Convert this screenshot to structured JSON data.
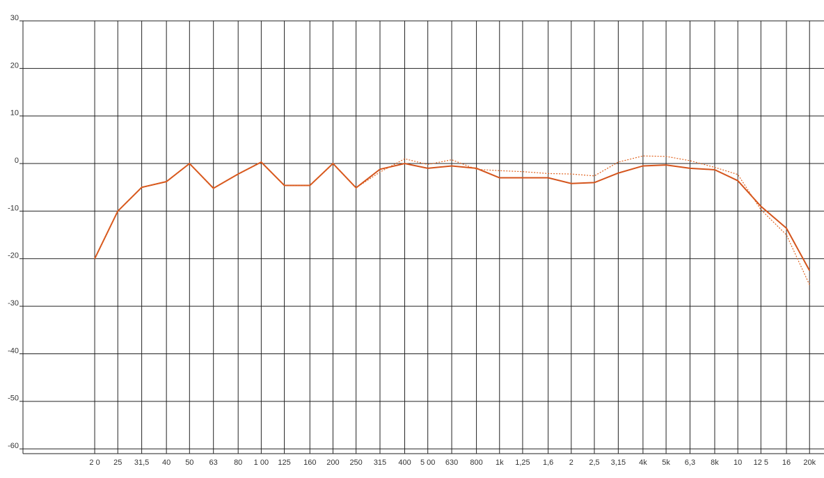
{
  "chart_data": {
    "type": "line",
    "log_x": true,
    "grid": true,
    "x": [
      20,
      25,
      31.5,
      40,
      50,
      63,
      80,
      100,
      125,
      160,
      200,
      250,
      315,
      400,
      500,
      630,
      800,
      1000,
      1250,
      1600,
      2000,
      2500,
      3150,
      4000,
      5000,
      6300,
      8000,
      10000,
      12500,
      16000,
      20000
    ],
    "series": [
      {
        "color": "#d4541c",
        "style": "solid",
        "values": [
          -20,
          -10,
          -5,
          -3.8,
          0,
          -5.2,
          -2.2,
          0.3,
          -4.6,
          -4.6,
          0,
          -5.1,
          -1.2,
          0,
          -1,
          -0.5,
          -1,
          -3,
          -3,
          -3,
          -4.2,
          -4,
          -2,
          -0.5,
          -0.3,
          -1,
          -1.3,
          -3.6,
          -9,
          -13.6,
          -22.5
        ]
      },
      {
        "color": "#e0621e",
        "style": "dotted",
        "values": [
          -20,
          -10,
          -5,
          -3.8,
          0,
          -5.2,
          -2.2,
          0.3,
          -4.6,
          -4.6,
          0,
          -5.1,
          -1.8,
          1,
          -0.2,
          0.8,
          -1.2,
          -1.5,
          -1.7,
          -2.1,
          -2.2,
          -2.6,
          0.3,
          1.6,
          1.5,
          0.6,
          -0.8,
          -2.3,
          -9.7,
          -15,
          -25.5
        ]
      }
    ],
    "xlim": [
      10,
      23000
    ],
    "xticks": [
      {
        "value": 20,
        "label": "2 0"
      },
      25,
      {
        "value": 31.5,
        "label": "31,5"
      },
      40,
      50,
      63,
      80,
      {
        "value": 100,
        "label": "1 00"
      },
      125,
      160,
      200,
      250,
      315,
      400,
      {
        "value": 500,
        "label": "5 00"
      },
      630,
      800,
      {
        "value": 1000,
        "label": "1k"
      },
      {
        "value": 1250,
        "label": "1,25"
      },
      {
        "value": 1600,
        "label": "1,6"
      },
      {
        "value": 2000,
        "label": "2"
      },
      {
        "value": 2500,
        "label": "2,5"
      },
      {
        "value": 3150,
        "label": "3,15"
      },
      {
        "value": 4000,
        "label": "4k"
      },
      {
        "value": 5000,
        "label": "5k"
      },
      {
        "value": 6300,
        "label": "6,3"
      },
      {
        "value": 8000,
        "label": "8k"
      },
      {
        "value": 10000,
        "label": "10"
      },
      {
        "value": 12500,
        "label": "12 5"
      },
      {
        "value": 16000,
        "label": "16"
      },
      {
        "value": 20000,
        "label": "20k"
      }
    ],
    "ylim": [
      -61,
      30
    ],
    "yticks": [
      30,
      20,
      10,
      0,
      -10,
      -20,
      -30,
      -40,
      -50,
      -60
    ]
  }
}
